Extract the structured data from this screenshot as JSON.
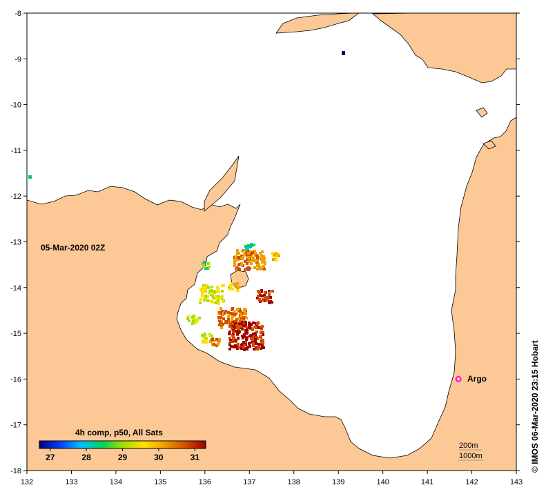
{
  "map": {
    "timestamp": "05-Mar-2020 02Z",
    "credit": "© IMOS 06-Mar-2020 23:15 Hobart",
    "lon_ticks": [
      "132",
      "133",
      "134",
      "135",
      "136",
      "137",
      "138",
      "139",
      "140",
      "141",
      "142",
      "143"
    ],
    "lat_ticks": [
      "-8",
      "-9",
      "-10",
      "-11",
      "-12",
      "-13",
      "-14",
      "-15",
      "-16",
      "-17",
      "-18"
    ],
    "lon_range": [
      132,
      143
    ],
    "lat_range": [
      -18,
      -8
    ],
    "land_color": "#fbc896",
    "sea_color": "#ffffff",
    "argo": {
      "label": "Argo",
      "lon": 141.7,
      "lat": -16.0,
      "color": "#ff00ff"
    },
    "isobaths": {
      "label_200": "200m",
      "label_1000": "1000m"
    }
  },
  "colorbar": {
    "title": "4h comp, p50, All Sats",
    "ticks": [
      "27",
      "28",
      "29",
      "30",
      "31"
    ],
    "range": [
      26.7,
      31.3
    ],
    "stops": [
      "#00007f",
      "#0040ff",
      "#00c0ff",
      "#00d060",
      "#a0e000",
      "#ffe000",
      "#f0a000",
      "#d05000",
      "#a00000"
    ]
  }
}
